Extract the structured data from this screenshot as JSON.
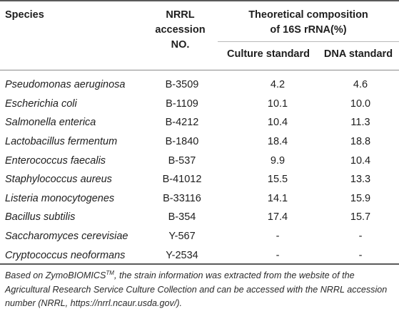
{
  "header": {
    "species": "Species",
    "accession_line1": "NRRL",
    "accession_line2": "accession",
    "accession_line3": "NO.",
    "composition_line1": "Theoretical composition",
    "composition_line2": "of 16S rRNA(%)",
    "culture_standard": "Culture standard",
    "dna_standard": "DNA standard"
  },
  "rows": [
    {
      "species": "Pseudomonas aeruginosa",
      "accession": "B-3509",
      "culture": "4.2",
      "dna": "4.6"
    },
    {
      "species": "Escherichia coli",
      "accession": "B-1109",
      "culture": "10.1",
      "dna": "10.0"
    },
    {
      "species": "Salmonella enterica",
      "accession": "B-4212",
      "culture": "10.4",
      "dna": "11.3"
    },
    {
      "species": "Lactobacillus fermentum",
      "accession": "B-1840",
      "culture": "18.4",
      "dna": "18.8"
    },
    {
      "species": "Enterococcus faecalis",
      "accession": "B-537",
      "culture": "9.9",
      "dna": "10.4"
    },
    {
      "species": "Staphylococcus aureus",
      "accession": "B-41012",
      "culture": "15.5",
      "dna": "13.3"
    },
    {
      "species": "Listeria monocytogenes",
      "accession": "B-33116",
      "culture": "14.1",
      "dna": "15.9"
    },
    {
      "species": "Bacillus subtilis",
      "accession": "B-354",
      "culture": "17.4",
      "dna": "15.7"
    },
    {
      "species": "Saccharomyces cerevisiae",
      "accession": "Y-567",
      "culture": "-",
      "dna": "-"
    },
    {
      "species": "Cryptococcus neoformans",
      "accession": "Y-2534",
      "culture": "-",
      "dna": "-"
    }
  ],
  "footnote": {
    "prefix": "Based on ZymoBIOMICS",
    "superscript": "TM",
    "rest": ", the strain information was extracted from the website of the Agricultural Research Service Culture Collection and can be accessed with the NRRL accession number (NRRL, https://nrrl.ncaur.usda.gov/)."
  }
}
